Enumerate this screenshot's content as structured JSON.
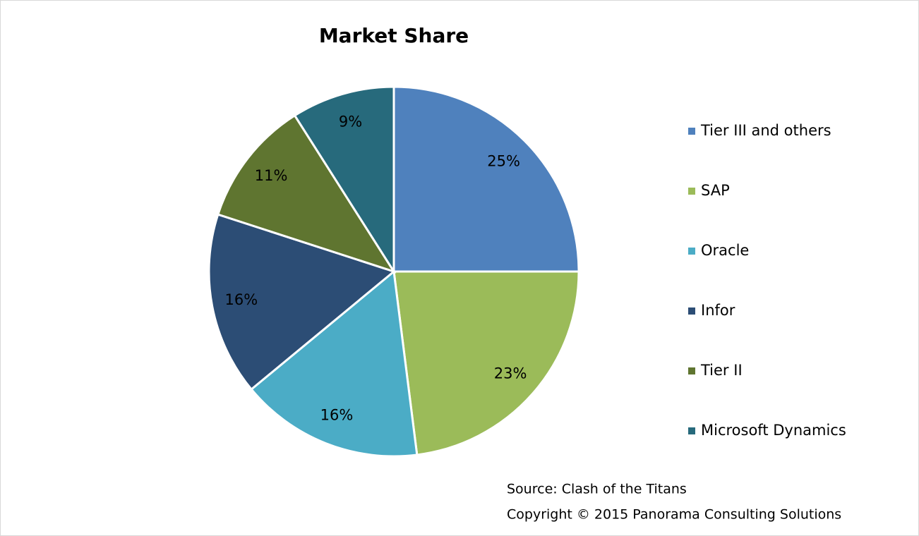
{
  "chart_data": {
    "type": "pie",
    "title": "Market Share",
    "categories": [
      "Tier III and others",
      "SAP",
      "Oracle",
      "Infor",
      "Tier II",
      "Microsoft Dynamics"
    ],
    "values": [
      25,
      23,
      16,
      16,
      11,
      9
    ],
    "value_labels": [
      "25%",
      "23%",
      "16%",
      "16%",
      "11%",
      "9%"
    ],
    "colors": [
      "#4f81bd",
      "#9bbb59",
      "#4bacc6",
      "#2c4d75",
      "#5f7530",
      "#276a7c"
    ],
    "legend": "right",
    "annotations": [
      "Source: Clash of the Titans",
      "Copyright © 2015 Panorama Consulting Solutions"
    ]
  }
}
